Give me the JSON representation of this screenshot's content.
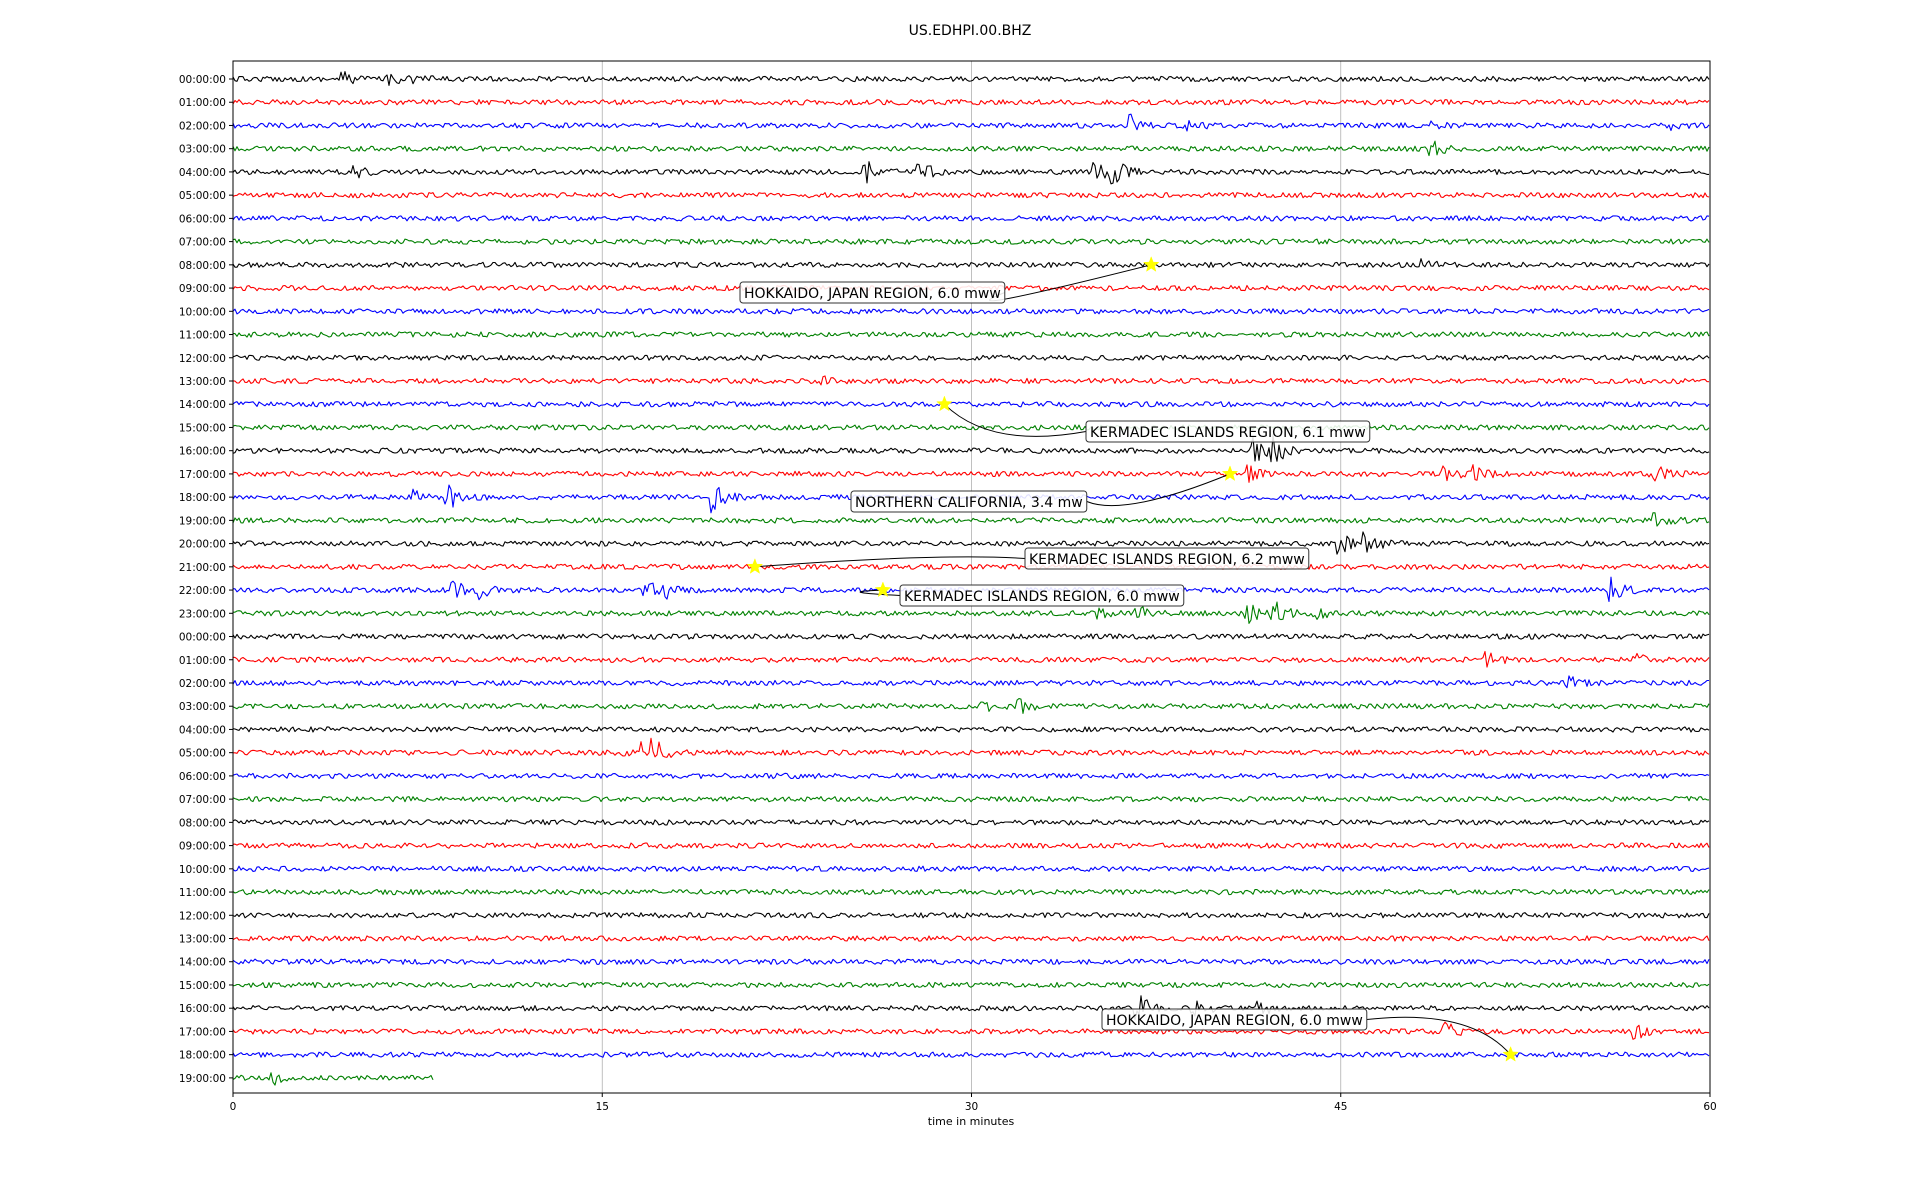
{
  "chart_data": {
    "type": "line",
    "title": "US.EDHPI.00.BHZ",
    "xlabel": "time in minutes",
    "ylabel": "",
    "xlim": [
      0,
      60
    ],
    "x_ticks": [
      "0",
      "15",
      "30",
      "45",
      "60"
    ],
    "grid": "vertical",
    "colors": [
      "#000000",
      "#ff0000",
      "#0000ff",
      "#008000"
    ],
    "star_color": "#ffff00",
    "row_labels": [
      "00:00:00",
      "01:00:00",
      "02:00:00",
      "03:00:00",
      "04:00:00",
      "05:00:00",
      "06:00:00",
      "07:00:00",
      "08:00:00",
      "09:00:00",
      "10:00:00",
      "11:00:00",
      "12:00:00",
      "13:00:00",
      "14:00:00",
      "15:00:00",
      "16:00:00",
      "17:00:00",
      "18:00:00",
      "19:00:00",
      "20:00:00",
      "21:00:00",
      "22:00:00",
      "23:00:00",
      "00:00:00",
      "01:00:00",
      "02:00:00",
      "03:00:00",
      "04:00:00",
      "05:00:00",
      "06:00:00",
      "07:00:00",
      "08:00:00",
      "09:00:00",
      "10:00:00",
      "11:00:00",
      "12:00:00",
      "13:00:00",
      "14:00:00",
      "15:00:00",
      "16:00:00",
      "17:00:00",
      "18:00:00",
      "19:00:00"
    ],
    "last_row_end_minute": 8.2,
    "events": [
      {
        "label": "HOKKAIDO, JAPAN REGION, 6.0 mww",
        "row": 8,
        "minute": 37.3
      },
      {
        "label": "KERMADEC ISLANDS REGION, 6.1 mww",
        "row": 14,
        "minute": 28.9
      },
      {
        "label": "NORTHERN CALIFORNIA, 3.4 mw",
        "row": 17,
        "minute": 40.5
      },
      {
        "label": "KERMADEC ISLANDS REGION, 6.2 mww",
        "row": 21,
        "minute": 21.2
      },
      {
        "label": "KERMADEC ISLANDS REGION, 6.0 mww",
        "row": 22,
        "minute": 26.4
      },
      {
        "label": "HOKKAIDO, JAPAN REGION, 6.0 mww",
        "row": 42,
        "minute": 51.9
      }
    ],
    "bursts": [
      {
        "row": 0,
        "minute": 4.5,
        "amp": 0.5
      },
      {
        "row": 0,
        "minute": 6.2,
        "amp": 0.6
      },
      {
        "row": 0,
        "minute": 7.3,
        "amp": 0.4
      },
      {
        "row": 2,
        "minute": 36.5,
        "amp": 0.7
      },
      {
        "row": 2,
        "minute": 38.7,
        "amp": 0.6
      },
      {
        "row": 2,
        "minute": 48.8,
        "amp": 0.3
      },
      {
        "row": 2,
        "minute": 58.5,
        "amp": 0.3
      },
      {
        "row": 3,
        "minute": 48.7,
        "amp": 0.7
      },
      {
        "row": 4,
        "minute": 4.8,
        "amp": 0.6
      },
      {
        "row": 4,
        "minute": 25.7,
        "amp": 0.9
      },
      {
        "row": 4,
        "minute": 27.9,
        "amp": 1.0
      },
      {
        "row": 4,
        "minute": 35.0,
        "amp": 1.0
      },
      {
        "row": 4,
        "minute": 35.7,
        "amp": 1.1
      },
      {
        "row": 8,
        "minute": 48.3,
        "amp": 0.4
      },
      {
        "row": 13,
        "minute": 24.0,
        "amp": 0.4
      },
      {
        "row": 16,
        "minute": 41.5,
        "amp": 1.0
      },
      {
        "row": 16,
        "minute": 42.3,
        "amp": 1.0
      },
      {
        "row": 17,
        "minute": 41.3,
        "amp": 0.6
      },
      {
        "row": 17,
        "minute": 49.2,
        "amp": 0.7
      },
      {
        "row": 17,
        "minute": 50.5,
        "amp": 0.6
      },
      {
        "row": 17,
        "minute": 57.6,
        "amp": 1.0
      },
      {
        "row": 18,
        "minute": 7.4,
        "amp": 0.7
      },
      {
        "row": 18,
        "minute": 8.7,
        "amp": 1.0
      },
      {
        "row": 18,
        "minute": 19.5,
        "amp": 1.1
      },
      {
        "row": 19,
        "minute": 57.7,
        "amp": 0.8
      },
      {
        "row": 20,
        "minute": 45.0,
        "amp": 0.7
      },
      {
        "row": 20,
        "minute": 46.0,
        "amp": 0.9
      },
      {
        "row": 22,
        "minute": 9.0,
        "amp": 0.6
      },
      {
        "row": 22,
        "minute": 10.0,
        "amp": 0.6
      },
      {
        "row": 22,
        "minute": 16.8,
        "amp": 0.7
      },
      {
        "row": 22,
        "minute": 17.6,
        "amp": 0.5
      },
      {
        "row": 22,
        "minute": 56.0,
        "amp": 0.9
      },
      {
        "row": 23,
        "minute": 35.0,
        "amp": 0.6
      },
      {
        "row": 23,
        "minute": 36.8,
        "amp": 0.5
      },
      {
        "row": 23,
        "minute": 41.2,
        "amp": 0.8
      },
      {
        "row": 23,
        "minute": 42.3,
        "amp": 1.0
      },
      {
        "row": 23,
        "minute": 44.0,
        "amp": 0.4
      },
      {
        "row": 25,
        "minute": 51.0,
        "amp": 0.5
      },
      {
        "row": 25,
        "minute": 57.0,
        "amp": 0.4
      },
      {
        "row": 26,
        "minute": 54.3,
        "amp": 0.4
      },
      {
        "row": 27,
        "minute": 30.5,
        "amp": 0.5
      },
      {
        "row": 27,
        "minute": 32.0,
        "amp": 0.5
      },
      {
        "row": 29,
        "minute": 15.2,
        "amp": 0.5
      },
      {
        "row": 29,
        "minute": 16.7,
        "amp": 0.9
      },
      {
        "row": 29,
        "minute": 17.1,
        "amp": 0.7
      },
      {
        "row": 40,
        "minute": 36.8,
        "amp": 1.0
      },
      {
        "row": 40,
        "minute": 39.0,
        "amp": 0.9
      },
      {
        "row": 40,
        "minute": 41.7,
        "amp": 0.6
      },
      {
        "row": 41,
        "minute": 49.3,
        "amp": 0.6
      },
      {
        "row": 41,
        "minute": 57.0,
        "amp": 0.5
      },
      {
        "row": 43,
        "minute": 1.6,
        "amp": 0.5
      }
    ]
  }
}
